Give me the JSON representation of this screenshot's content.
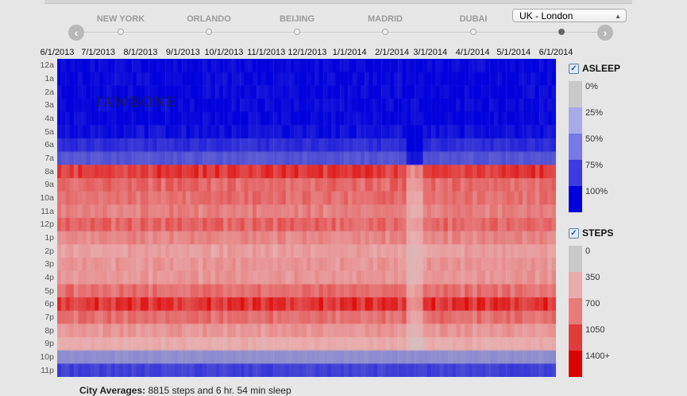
{
  "nav": {
    "cities": [
      "NEW YORK",
      "ORLANDO",
      "BEIJING",
      "MADRID",
      "DUBAI"
    ],
    "selected_city": "UK - London",
    "active_index": 5,
    "prev_icon": "chevron-left-icon",
    "next_icon": "chevron-right-icon"
  },
  "logo": "JAWBONE",
  "legend": {
    "asleep": {
      "title": "ASLEEP",
      "checked": true,
      "labels": [
        "0%",
        "25%",
        "50%",
        "75%",
        "100%"
      ],
      "colors": [
        "#c9c9c9",
        "#a9a9ea",
        "#7878e6",
        "#3c3ce2",
        "#0000dc"
      ]
    },
    "steps": {
      "title": "STEPS",
      "checked": true,
      "labels": [
        "0",
        "350",
        "700",
        "1050",
        "1400+"
      ],
      "colors": [
        "#c9c9c9",
        "#e9abab",
        "#e87a7a",
        "#e13c3c",
        "#dd0000"
      ]
    }
  },
  "footer": {
    "label": "City Averages:",
    "text": "8815 steps and 6 hr. 54 min sleep"
  },
  "chart_data": {
    "type": "heatmap",
    "x_tick_labels": [
      "6/1/2013",
      "7/1/2013",
      "8/1/2013",
      "9/1/2013",
      "10/1/2013",
      "11/1/2013",
      "12/1/2013",
      "1/1/2014",
      "2/1/2014",
      "3/1/2014",
      "4/1/2014",
      "5/1/2014",
      "6/1/2014"
    ],
    "x_range": [
      "6/1/2013",
      "6/1/2014"
    ],
    "y_tick_labels": [
      "12a",
      "1a",
      "2a",
      "3a",
      "4a",
      "5a",
      "6a",
      "7a",
      "8a",
      "9a",
      "10a",
      "11a",
      "12p",
      "1p",
      "2p",
      "3p",
      "4p",
      "5p",
      "6p",
      "7p",
      "8p",
      "9p",
      "10p",
      "11p"
    ],
    "hourly_profile": [
      {
        "hour": "12a",
        "metric": "asleep",
        "value": 100
      },
      {
        "hour": "1a",
        "metric": "asleep",
        "value": 100
      },
      {
        "hour": "2a",
        "metric": "asleep",
        "value": 100
      },
      {
        "hour": "3a",
        "metric": "asleep",
        "value": 100
      },
      {
        "hour": "4a",
        "metric": "asleep",
        "value": 100
      },
      {
        "hour": "5a",
        "metric": "asleep",
        "value": 95
      },
      {
        "hour": "6a",
        "metric": "asleep",
        "value": 80
      },
      {
        "hour": "7a",
        "metric": "asleep",
        "value": 60
      },
      {
        "hour": "8a",
        "metric": "steps",
        "value": 1100
      },
      {
        "hour": "9a",
        "metric": "steps",
        "value": 800
      },
      {
        "hour": "10a",
        "metric": "steps",
        "value": 750
      },
      {
        "hour": "11a",
        "metric": "steps",
        "value": 650
      },
      {
        "hour": "12p",
        "metric": "steps",
        "value": 800
      },
      {
        "hour": "1p",
        "metric": "steps",
        "value": 600
      },
      {
        "hour": "2p",
        "metric": "steps",
        "value": 450
      },
      {
        "hour": "3p",
        "metric": "steps",
        "value": 500
      },
      {
        "hour": "4p",
        "metric": "steps",
        "value": 500
      },
      {
        "hour": "5p",
        "metric": "steps",
        "value": 750
      },
      {
        "hour": "6p",
        "metric": "steps",
        "value": 1150
      },
      {
        "hour": "7p",
        "metric": "steps",
        "value": 750
      },
      {
        "hour": "8p",
        "metric": "steps",
        "value": 500
      },
      {
        "hour": "9p",
        "metric": "steps",
        "value": 350
      },
      {
        "hour": "10p",
        "metric": "asleep",
        "value": 30
      },
      {
        "hour": "11p",
        "metric": "asleep",
        "value": 70
      }
    ]
  }
}
